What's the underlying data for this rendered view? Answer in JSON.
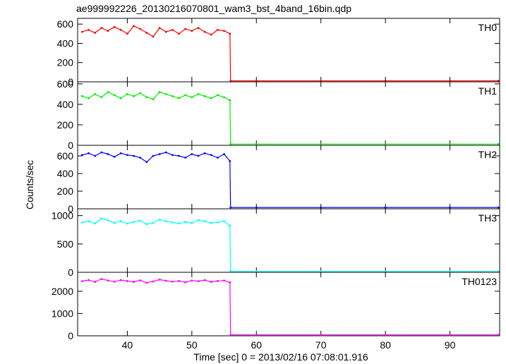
{
  "chart_data": {
    "type": "line",
    "title": "ae999992226_20130216070801_wam3_bst_4band_16bin.qdp",
    "xlabel": "Time [sec] 0 = 2013/02/16 07:08:01.916",
    "ylabel": "Counts/sec",
    "xlim": [
      32.3,
      97.7
    ],
    "x_ticks": [
      40,
      50,
      60,
      70,
      80,
      90
    ],
    "x_tick_labels": [
      "40",
      "50",
      "60",
      "70",
      "80",
      "90"
    ],
    "burst_drop_time": 55.9,
    "grid": false,
    "panels": [
      {
        "name": "TH0",
        "color": "#ff0000",
        "ylim": [
          0,
          660
        ],
        "y_ticks": [
          0,
          200,
          400,
          600
        ],
        "y_tick_labels": [
          "0",
          "200",
          "400",
          "600"
        ],
        "x_points": [
          33,
          34,
          35,
          36,
          37,
          38,
          39,
          40,
          41,
          42,
          43,
          44,
          45,
          46,
          47,
          48,
          49,
          50,
          51,
          52,
          53,
          54,
          55,
          55.9,
          56,
          60,
          70,
          80,
          90,
          97.5
        ],
        "values": [
          520,
          540,
          510,
          560,
          530,
          570,
          540,
          500,
          580,
          550,
          510,
          470,
          560,
          520,
          540,
          500,
          550,
          530,
          560,
          520,
          490,
          540,
          530,
          500,
          10,
          10,
          10,
          10,
          10,
          10
        ]
      },
      {
        "name": "TH1",
        "color": "#00ee00",
        "ylim": [
          0,
          620
        ],
        "y_ticks": [
          0,
          200,
          400,
          600
        ],
        "y_tick_labels": [
          "0",
          "200",
          "400",
          "600"
        ],
        "x_points": [
          33,
          34,
          35,
          36,
          37,
          38,
          39,
          40,
          41,
          42,
          43,
          44,
          45,
          46,
          47,
          48,
          49,
          50,
          51,
          52,
          53,
          54,
          55,
          55.9,
          56,
          60,
          70,
          80,
          90,
          97.5
        ],
        "values": [
          480,
          460,
          500,
          470,
          520,
          490,
          460,
          500,
          480,
          510,
          470,
          450,
          520,
          500,
          480,
          460,
          490,
          470,
          500,
          480,
          460,
          490,
          470,
          440,
          12,
          12,
          12,
          12,
          12,
          12
        ]
      },
      {
        "name": "TH2",
        "color": "#0000ff",
        "ylim": [
          0,
          720
        ],
        "y_ticks": [
          0,
          200,
          400,
          600
        ],
        "y_tick_labels": [
          "0",
          "200",
          "400",
          "600"
        ],
        "x_points": [
          33,
          34,
          35,
          36,
          37,
          38,
          39,
          40,
          41,
          42,
          43,
          44,
          45,
          46,
          47,
          48,
          49,
          50,
          51,
          52,
          53,
          54,
          55,
          55.9,
          56,
          60,
          70,
          80,
          90,
          97.5
        ],
        "values": [
          610,
          630,
          600,
          640,
          620,
          590,
          630,
          610,
          600,
          580,
          530,
          600,
          620,
          640,
          610,
          600,
          580,
          620,
          600,
          630,
          610,
          580,
          620,
          540,
          15,
          15,
          15,
          15,
          15,
          15
        ]
      },
      {
        "name": "TH3",
        "color": "#00ffff",
        "ylim": [
          0,
          1120
        ],
        "y_ticks": [
          0,
          500,
          1000
        ],
        "y_tick_labels": [
          "0",
          "500",
          "1000"
        ],
        "x_points": [
          33,
          34,
          35,
          36,
          37,
          38,
          39,
          40,
          41,
          42,
          43,
          44,
          45,
          46,
          47,
          48,
          49,
          50,
          51,
          52,
          53,
          54,
          55,
          55.9,
          56,
          60,
          70,
          80,
          90,
          97.5
        ],
        "values": [
          880,
          900,
          860,
          950,
          920,
          870,
          900,
          860,
          890,
          910,
          850,
          870,
          930,
          900,
          880,
          860,
          890,
          870,
          920,
          900,
          870,
          880,
          900,
          820,
          15,
          15,
          15,
          15,
          15,
          15
        ]
      },
      {
        "name": "TH0123",
        "color": "#ff00ff",
        "ylim": [
          0,
          2850
        ],
        "y_ticks": [
          0,
          1000,
          2000
        ],
        "y_tick_labels": [
          "0",
          "1000",
          "2000"
        ],
        "x_points": [
          33,
          34,
          35,
          36,
          37,
          38,
          39,
          40,
          41,
          42,
          43,
          44,
          45,
          46,
          47,
          48,
          49,
          50,
          51,
          52,
          53,
          54,
          55,
          55.9,
          56,
          60,
          70,
          80,
          90,
          97.5
        ],
        "values": [
          2450,
          2500,
          2420,
          2550,
          2480,
          2430,
          2500,
          2460,
          2420,
          2490,
          2380,
          2440,
          2520,
          2470,
          2430,
          2460,
          2400,
          2480,
          2450,
          2500,
          2420,
          2460,
          2480,
          2400,
          40,
          40,
          40,
          40,
          40,
          40
        ]
      }
    ]
  }
}
